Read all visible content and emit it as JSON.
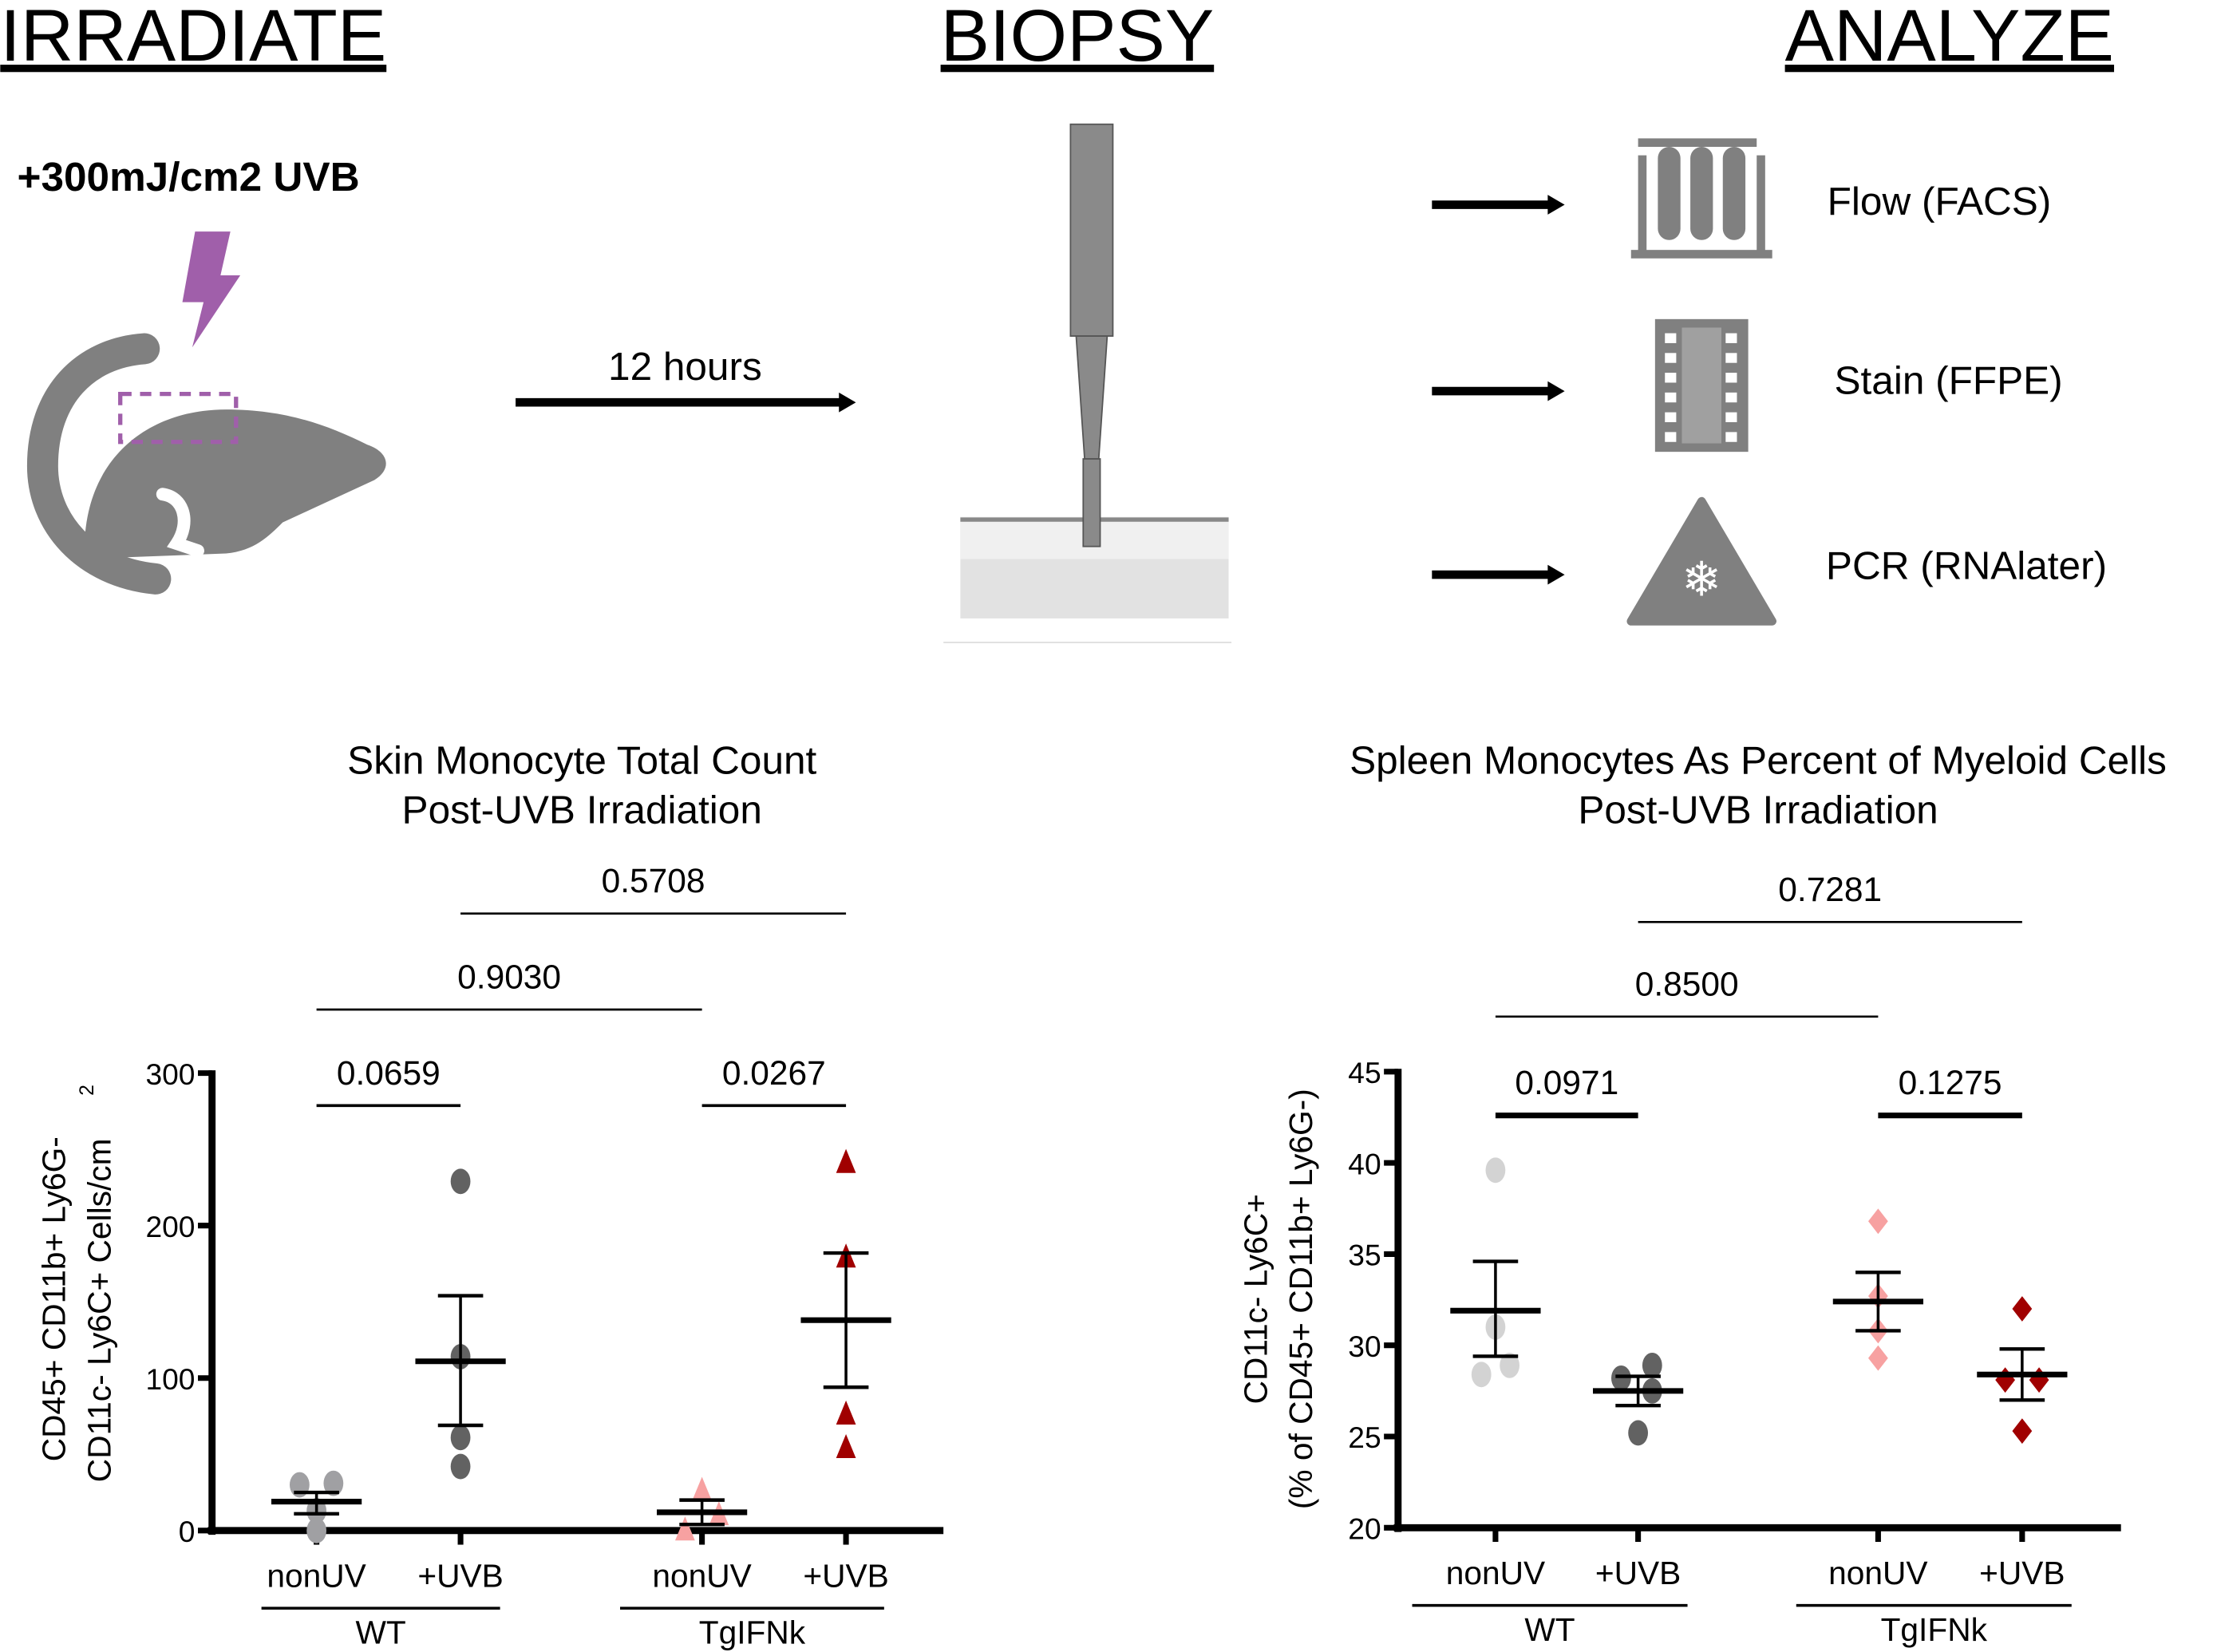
{
  "workflow": {
    "step1": "IRRADIATE",
    "step2": "BIOPSY",
    "step3": "ANALYZE",
    "dose": "+300mJ/cm2 UVB",
    "interval": "12 hours",
    "analyses": [
      "Flow (FACS)",
      "Stain (FFPE)",
      "PCR (RNAlater)"
    ],
    "colors": {
      "uv": "#a05faa",
      "icon": "#808080"
    }
  },
  "chart_data": [
    {
      "type": "scatter",
      "title": [
        "Skin Monocyte Total Count",
        "Post-UVB Irradiation"
      ],
      "ylabel": [
        "CD45+ CD11b+ Ly6G-",
        "CD11c- Ly6C+ Cells/cm",
        "2"
      ],
      "ylim": [
        0,
        300
      ],
      "yticks": [
        "0",
        "100",
        "200",
        "300"
      ],
      "categories": [
        "nonUV",
        "+UVB",
        "nonUV",
        "+UVB"
      ],
      "groups": [
        "WT",
        "TgIFNk"
      ],
      "series": [
        {
          "values": [
            30,
            31,
            13,
            0
          ],
          "mean": 19,
          "sem": [
            11,
            25
          ],
          "color": "#a0a0a3",
          "marker": "circle"
        },
        {
          "values": [
            229,
            114,
            61,
            42
          ],
          "mean": 111,
          "sem": [
            69,
            154
          ],
          "color": "#626262",
          "marker": "circle"
        },
        {
          "values": [
            26,
            10,
            0
          ],
          "mean": 12,
          "sem": [
            4,
            20
          ],
          "color": "#f7a1a1",
          "marker": "triangle"
        },
        {
          "values": [
            241,
            179,
            76,
            54
          ],
          "mean": 138,
          "sem": [
            94,
            182
          ],
          "color": "#a00000",
          "marker": "triangle"
        }
      ],
      "comparisons": [
        {
          "pair": [
            0,
            1
          ],
          "p": "0.0659"
        },
        {
          "pair": [
            2,
            3
          ],
          "p": "0.0267"
        },
        {
          "pair": [
            0,
            2
          ],
          "p": "0.9030"
        },
        {
          "pair": [
            1,
            3
          ],
          "p": "0.5708"
        }
      ]
    },
    {
      "type": "scatter",
      "title": [
        "Spleen Monocytes As Percent of Myeloid Cells",
        "Post-UVB Irradiation"
      ],
      "ylabel": [
        "CD11c- Ly6C+",
        "(% of CD45+ CD11b+ Ly6G-)"
      ],
      "ylim": [
        20,
        45
      ],
      "yticks": [
        "20",
        "25",
        "30",
        "35",
        "40",
        "45"
      ],
      "categories": [
        "nonUV",
        "+UVB",
        "nonUV",
        "+UVB"
      ],
      "groups": [
        "WT",
        "TgIFNk"
      ],
      "series": [
        {
          "values": [
            39.6,
            31.0,
            28.9,
            28.4
          ],
          "mean": 31.9,
          "sem": [
            29.4,
            34.6
          ],
          "color": "#d3d3d3",
          "marker": "circle"
        },
        {
          "values": [
            28.9,
            28.2,
            27.5,
            25.2
          ],
          "mean": 27.5,
          "sem": [
            26.7,
            28.3
          ],
          "color": "#626262",
          "marker": "circle"
        },
        {
          "values": [
            36.8,
            32.7,
            30.8,
            29.3
          ],
          "mean": 32.4,
          "sem": [
            30.8,
            34.0
          ],
          "color": "#f7a1a1",
          "marker": "diamond"
        },
        {
          "values": [
            32.0,
            28.1,
            28.1,
            25.3
          ],
          "mean": 28.4,
          "sem": [
            27.0,
            29.8
          ],
          "color": "#a00000",
          "marker": "diamond"
        }
      ],
      "comparisons": [
        {
          "pair": [
            0,
            1
          ],
          "p": "0.0971"
        },
        {
          "pair": [
            2,
            3
          ],
          "p": "0.1275"
        },
        {
          "pair": [
            0,
            2
          ],
          "p": "0.8500"
        },
        {
          "pair": [
            1,
            3
          ],
          "p": "0.7281"
        }
      ]
    }
  ]
}
